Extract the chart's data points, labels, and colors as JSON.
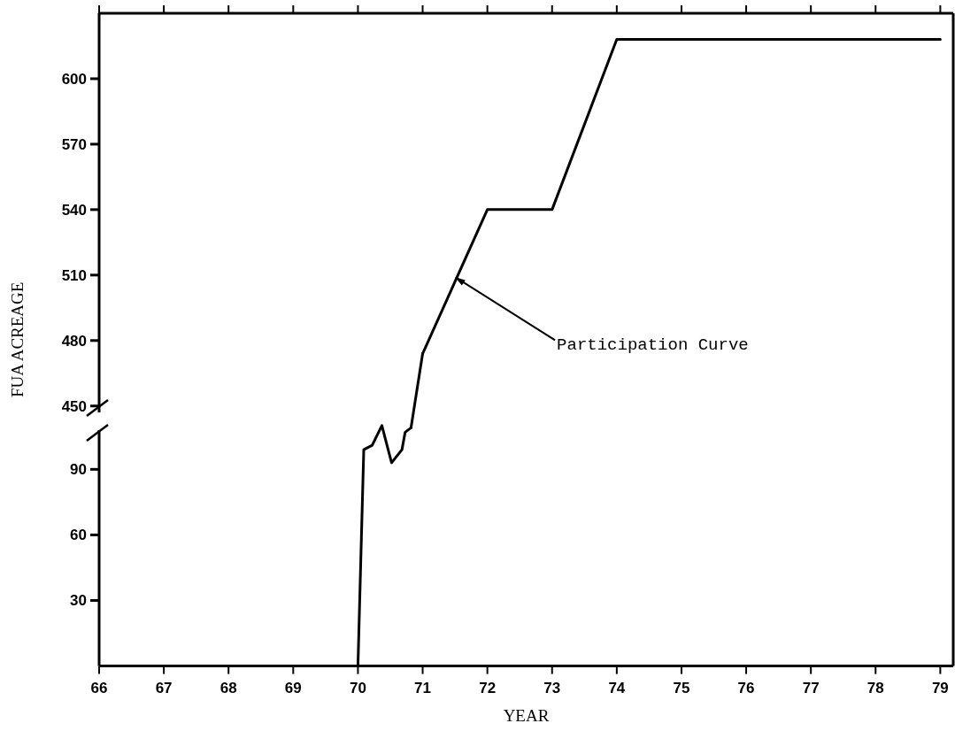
{
  "chart_data": [
    {
      "type": "line",
      "ylabel": "FUA ACREAGE",
      "xlim": [
        66,
        79.2
      ],
      "xticks": [
        66,
        67,
        68,
        69,
        70,
        71,
        72,
        73,
        74,
        75,
        76,
        77,
        78,
        79
      ],
      "ylim": [
        443,
        630
      ],
      "yticks": [
        450,
        480,
        510,
        540,
        570,
        600
      ],
      "tick_labels": "y",
      "series": [
        {
          "color": "#000000",
          "x": [
            71,
            72,
            73,
            74,
            79
          ],
          "values": [
            474,
            540,
            540,
            618,
            618
          ]
        }
      ],
      "annotations": [
        {
          "text": "Participation Curve",
          "x": 71.5,
          "y": 509
        }
      ]
    },
    {
      "type": "line",
      "xlabel": "YEAR",
      "xlim": [
        66,
        79.2
      ],
      "xticks": [
        66,
        67,
        68,
        69,
        70,
        71,
        72,
        73,
        74,
        75,
        76,
        77,
        78,
        79
      ],
      "ylim": [
        0,
        112
      ],
      "yticks": [
        30,
        60,
        90
      ],
      "series": [
        {
          "color": "#000000",
          "x": [
            70,
            70.09,
            70.22,
            70.37,
            70.52,
            70.68,
            70.73,
            70.82
          ],
          "values": [
            0,
            99,
            101,
            110,
            93,
            99,
            107,
            109
          ]
        }
      ]
    }
  ]
}
